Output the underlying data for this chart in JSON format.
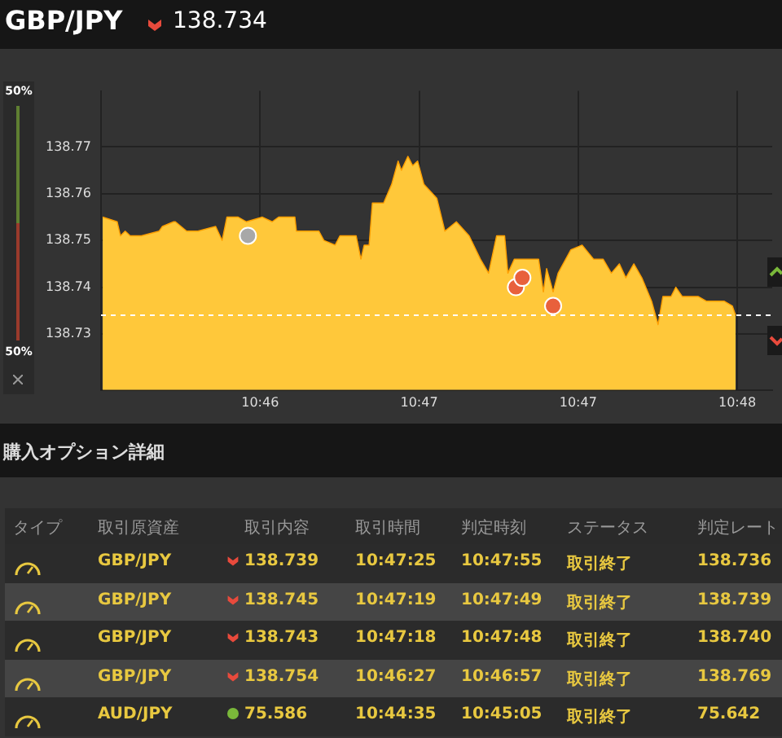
{
  "chart_data": [
    {
      "type": "area",
      "title": "GBP/JPY",
      "subtitle": "138.734",
      "x": [
        10.75842,
        10.75918,
        10.75935,
        10.7596,
        10.75986,
        10.76045,
        10.76138,
        10.76155,
        10.76214,
        10.76223,
        10.76282,
        10.76341,
        10.76434,
        10.76468,
        10.76493,
        10.76552,
        10.76595,
        10.76679,
        10.7673,
        10.76764,
        10.76849,
        10.76857,
        10.76975,
        10.77001,
        10.7706,
        10.77085,
        10.7717,
        10.77195,
        10.77212,
        10.77238,
        10.77255,
        10.77314,
        10.77356,
        10.7739,
        10.77407,
        10.77441,
        10.77466,
        10.77492,
        10.77525,
        10.77593,
        10.77635,
        10.77695,
        10.77762,
        10.77821,
        10.77864,
        10.77906,
        10.77948,
        10.77965,
        10.77999,
        10.78058,
        10.78126,
        10.78151,
        10.78168,
        10.78202,
        10.78228,
        10.78295,
        10.78354,
        10.78414,
        10.78464,
        10.78507,
        10.78549,
        10.78583,
        10.78625,
        10.78667,
        10.78718,
        10.78752,
        10.78777,
        10.7882,
        10.78845,
        10.78879,
        10.78921,
        10.78963,
        10.79006,
        10.79099,
        10.79141,
        10.79158
      ],
      "series": [
        {
          "type": "area",
          "color": "#ffc83a",
          "marker": "none",
          "values": [
            138.755,
            138.754,
            138.751,
            138.752,
            138.751,
            138.751,
            138.752,
            138.753,
            138.754,
            138.754,
            138.752,
            138.752,
            138.753,
            138.75,
            138.755,
            138.755,
            138.754,
            138.755,
            138.754,
            138.755,
            138.755,
            138.752,
            138.752,
            138.75,
            138.749,
            138.751,
            138.751,
            138.746,
            138.749,
            138.749,
            138.758,
            138.758,
            138.762,
            138.767,
            138.765,
            138.768,
            138.766,
            138.767,
            138.762,
            138.759,
            138.752,
            138.754,
            138.751,
            138.746,
            138.743,
            138.751,
            138.751,
            138.743,
            138.746,
            138.746,
            138.746,
            138.739,
            138.744,
            138.739,
            138.743,
            138.748,
            138.749,
            138.746,
            138.746,
            138.743,
            138.745,
            138.742,
            138.745,
            138.742,
            138.737,
            138.732,
            138.738,
            138.738,
            138.74,
            138.738,
            138.738,
            138.738,
            138.737,
            138.737,
            138.736,
            138.734
          ]
        },
        {
          "type": "scatter",
          "marker": "circle",
          "colors": [
            "#a8a8a8",
            "#e8603c",
            "#e8603c",
            "#e8603c"
          ],
          "x": [
            10.76603,
            10.78007,
            10.78041,
            10.78202
          ],
          "values": [
            138.751,
            138.74,
            138.742,
            138.736
          ]
        }
      ],
      "xlim": [
        10.758333,
        10.7935
      ],
      "ylim": [
        138.718,
        138.782
      ],
      "xticks": [
        {
          "value": 10.766667,
          "label": "10:46"
        },
        {
          "value": 10.775,
          "label": "10:47"
        },
        {
          "value": 10.783333,
          "label": "10:47"
        },
        {
          "value": 10.791667,
          "label": "10:48"
        }
      ],
      "yticks": [
        138.73,
        138.74,
        138.75,
        138.76,
        138.77
      ],
      "ref_lines": [
        {
          "axis": "y",
          "value": 138.734,
          "color": "#ffffff",
          "line_style": "dashed"
        }
      ],
      "grid": true,
      "legend": false,
      "annotations": [
        "50%",
        "50%"
      ]
    },
    {
      "type": "other",
      "title": "購入オプション詳細",
      "annotations": [
        "タイプ",
        "取引原資産",
        "取引内容",
        "取引時間",
        "判定時刻",
        "ステータス",
        "判定レート",
        "GBP/JPY",
        "138.739",
        "10:47:25",
        "10:47:55",
        "取引終了",
        "138.736",
        "GBP/JPY",
        "138.745",
        "10:47:19",
        "10:47:49",
        "取引終了",
        "138.739",
        "GBP/JPY",
        "138.743",
        "10:47:18",
        "10:47:48",
        "取引終了",
        "138.740",
        "GBP/JPY",
        "138.754",
        "10:46:27",
        "10:46:57",
        "取引終了",
        "138.769",
        "AUD/JPY",
        "75.586",
        "10:44:35",
        "10:45:05",
        "取引終了",
        "75.642"
      ]
    }
  ]
}
